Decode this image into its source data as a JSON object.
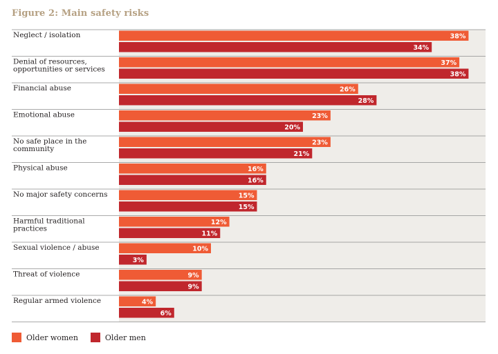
{
  "chart_data": {
    "type": "bar",
    "orientation": "horizontal",
    "title": "Figure 2: Main safety risks",
    "categories": [
      "Neglect / isolation",
      "Denial of resources,\nopportunities or services",
      "Financial abuse",
      "Emotional abuse",
      "No safe place in the\ncommunity",
      "Physical abuse",
      "No major safety concerns",
      "Harmful traditional\npractices",
      "Sexual violence / abuse",
      "Threat of violence",
      "Regular armed violence"
    ],
    "series": [
      {
        "name": "Older women",
        "color": "#ef5b35",
        "values": [
          38,
          37,
          26,
          23,
          23,
          16,
          15,
          12,
          10,
          9,
          4
        ]
      },
      {
        "name": "Older men",
        "color": "#c0272d",
        "values": [
          34,
          38,
          28,
          20,
          21,
          16,
          15,
          11,
          3,
          9,
          6
        ]
      }
    ],
    "value_suffix": "%",
    "xlim": [
      0,
      100
    ],
    "legend_position": "bottom-left",
    "background_color": "#efede9"
  }
}
